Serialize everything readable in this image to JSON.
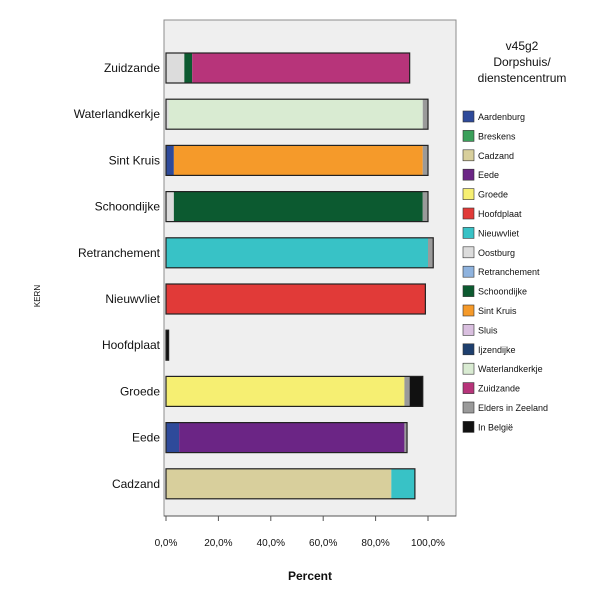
{
  "chart_data": {
    "type": "bar",
    "orientation": "horizontal",
    "stacked": true,
    "xlabel": "Percent",
    "ylabel": "KERN",
    "xlim": [
      0,
      100
    ],
    "x_ticks": [
      "0,0%",
      "20,0%",
      "40,0%",
      "60,0%",
      "80,0%",
      "100,0%"
    ],
    "legend": {
      "title": [
        "v45g2",
        "Dorpshuis/",
        "dienstencentrum"
      ],
      "placement": "right"
    },
    "categories": [
      "Zuidzande",
      "Waterlandkerkje",
      "Sint Kruis",
      "Schoondijke",
      "Retranchement",
      "Nieuwvliet",
      "Hoofdplaat",
      "Groede",
      "Eede",
      "Cadzand"
    ],
    "series": [
      {
        "name": "Aardenburg",
        "color": "#2e4a9a",
        "values": [
          0,
          0,
          3,
          0,
          0,
          0,
          0,
          0,
          5,
          0
        ]
      },
      {
        "name": "Breskens",
        "color": "#3aa05a",
        "values": [
          0,
          0,
          0,
          0,
          0,
          0,
          0,
          0,
          0,
          0
        ]
      },
      {
        "name": "Cadzand",
        "color": "#d8cf9c",
        "values": [
          0,
          0,
          0,
          0,
          0,
          0,
          0,
          0,
          0,
          86
        ]
      },
      {
        "name": "Eede",
        "color": "#6b2585",
        "values": [
          0,
          0,
          0,
          0,
          0,
          0,
          0,
          0,
          86,
          0
        ]
      },
      {
        "name": "Groede",
        "color": "#f6ef72",
        "values": [
          0,
          0,
          0,
          0,
          0,
          0,
          0,
          91,
          0,
          0
        ]
      },
      {
        "name": "Hoofdplaat",
        "color": "#e13a38",
        "values": [
          0,
          0,
          0,
          0,
          0,
          99,
          0,
          0,
          0,
          0
        ]
      },
      {
        "name": "Nieuwvliet",
        "color": "#38c2c6",
        "values": [
          0,
          0,
          0,
          0,
          100,
          0,
          0,
          0,
          0,
          9
        ]
      },
      {
        "name": "Oostburg",
        "color": "#dcdcdc",
        "values": [
          7,
          1,
          0,
          3,
          0,
          0,
          0,
          0,
          0,
          0
        ]
      },
      {
        "name": "Retranchement",
        "color": "#8fb3de",
        "values": [
          0,
          0,
          0,
          0,
          0,
          0,
          0,
          0,
          0,
          0
        ]
      },
      {
        "name": "Schoondijke",
        "color": "#0c5a30",
        "values": [
          3,
          0,
          0,
          95,
          0,
          0,
          0,
          0,
          0,
          0
        ]
      },
      {
        "name": "Sint Kruis",
        "color": "#f59a2a",
        "values": [
          0,
          0,
          95,
          0,
          0,
          0,
          0,
          0,
          0,
          0
        ]
      },
      {
        "name": "Sluis",
        "color": "#d9bfdf",
        "values": [
          0,
          0,
          0,
          0,
          0,
          0,
          0,
          0,
          0,
          0
        ]
      },
      {
        "name": "Ijzendijke",
        "color": "#1e3f6e",
        "values": [
          0,
          0,
          0,
          0,
          0,
          0,
          0,
          0,
          0,
          0
        ]
      },
      {
        "name": "Waterlandkerkje",
        "color": "#d9ebd2",
        "values": [
          0,
          97,
          0,
          0,
          0,
          0,
          0,
          0,
          0,
          0
        ]
      },
      {
        "name": "Zuidzande",
        "color": "#b7347a",
        "values": [
          83,
          0,
          0,
          0,
          0,
          0,
          0,
          0,
          0,
          0
        ]
      },
      {
        "name": "Elders in Zeeland",
        "color": "#9a9a9a",
        "values": [
          0,
          2,
          2,
          2,
          2,
          0,
          0,
          2,
          1,
          0
        ]
      },
      {
        "name": "In België",
        "color": "#111111",
        "values": [
          0,
          0,
          0,
          0,
          0,
          0,
          1,
          5,
          0,
          0
        ]
      }
    ],
    "grid": false
  }
}
